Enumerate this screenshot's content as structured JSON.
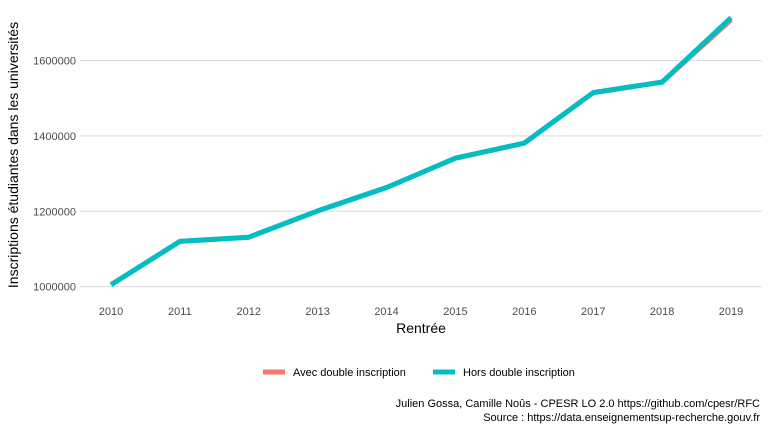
{
  "chart_data": {
    "type": "line",
    "xlabel": "Rentrée",
    "ylabel": "Inscriptions étudiantes dans les universités",
    "x": [
      2010,
      2011,
      2012,
      2013,
      2014,
      2015,
      2016,
      2017,
      2018,
      2019
    ],
    "x_ticks": [
      "2010",
      "2011",
      "2012",
      "2013",
      "2014",
      "2015",
      "2016",
      "2017",
      "2018",
      "2019"
    ],
    "y_ticks": [
      "1000000",
      "1200000",
      "1400000",
      "1600000"
    ],
    "y_tick_values": [
      1000000,
      1200000,
      1400000,
      1600000
    ],
    "ylim": [
      975000,
      1745000
    ],
    "grid": true,
    "legend_position": "bottom",
    "series": [
      {
        "name": "Avec double inscription",
        "color": "#F8766D",
        "values": [
          1005000,
          1120000,
          1131000,
          1201000,
          1263000,
          1341000,
          1381000,
          1515000,
          1543000,
          1708000
        ]
      },
      {
        "name": "Hors double inscription",
        "color": "#00BFC4",
        "values": [
          1005000,
          1120000,
          1131000,
          1201000,
          1263000,
          1341000,
          1381000,
          1515000,
          1543000,
          1714000
        ]
      }
    ],
    "caption": [
      "Julien Gossa, Camille Noûs - CPESR LO 2.0 https://github.com/cpesr/RFC",
      "Source : https://data.enseignementsup-recherche.gouv.fr"
    ]
  }
}
